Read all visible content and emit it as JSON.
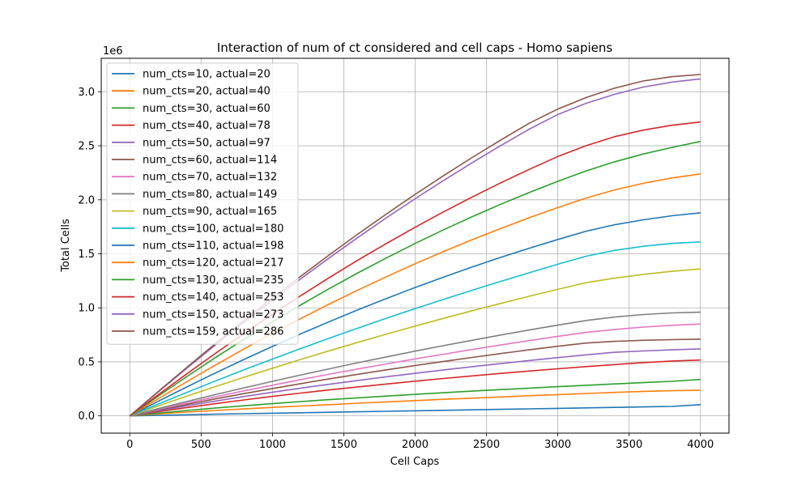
{
  "chart_data": {
    "type": "line",
    "title": "Interaction of num of ct considered and cell caps - Homo sapiens",
    "xlabel": "Cell Caps",
    "ylabel": "Total Cells",
    "y_offset_text": "1e6",
    "xlim": [
      -200,
      4200
    ],
    "ylim": [
      -160000,
      3310000
    ],
    "grid": true,
    "legend_placement": "upper-left",
    "x_ticks": [
      0,
      500,
      1000,
      1500,
      2000,
      2500,
      3000,
      3500,
      4000
    ],
    "x_tick_labels": [
      "0",
      "500",
      "1000",
      "1500",
      "2000",
      "2500",
      "3000",
      "3500",
      "4000"
    ],
    "y_ticks": [
      0,
      500000,
      1000000,
      1500000,
      2000000,
      2500000,
      3000000
    ],
    "y_tick_labels": [
      "0.0",
      "0.5",
      "1.0",
      "1.5",
      "2.0",
      "2.5",
      "3.0"
    ],
    "x": [
      0,
      200,
      400,
      600,
      800,
      1000,
      1200,
      1400,
      1600,
      1800,
      2000,
      2200,
      2400,
      2600,
      2800,
      3000,
      3200,
      3400,
      3600,
      3800,
      4000
    ],
    "series": [
      {
        "name": "num_cts=10, actual=20",
        "color": "#1f77b4",
        "values": [
          0,
          5000,
          10000,
          15000,
          19500,
          24000,
          28500,
          33000,
          37500,
          42000,
          46500,
          51000,
          55500,
          60000,
          64500,
          69000,
          73500,
          78000,
          82500,
          87000,
          104000
        ]
      },
      {
        "name": "num_cts=20, actual=40",
        "color": "#ff7f0e",
        "values": [
          0,
          18000,
          35000,
          50000,
          64000,
          78000,
          91000,
          104000,
          117000,
          129000,
          141000,
          153000,
          164000,
          175000,
          186000,
          197000,
          207000,
          217000,
          227000,
          233000,
          238000
        ]
      },
      {
        "name": "num_cts=30, actual=60",
        "color": "#2ca02c",
        "values": [
          0,
          26000,
          50000,
          72000,
          93000,
          113000,
          132000,
          150000,
          167000,
          183000,
          199000,
          214000,
          229000,
          243000,
          257000,
          270000,
          283000,
          296000,
          308000,
          320000,
          337000
        ]
      },
      {
        "name": "num_cts=40, actual=78",
        "color": "#d62728",
        "values": [
          0,
          39000,
          77000,
          113000,
          147000,
          180000,
          211000,
          240000,
          268000,
          295000,
          321000,
          346000,
          370000,
          393000,
          415000,
          436000,
          456000,
          475000,
          493000,
          508000,
          517000
        ]
      },
      {
        "name": "num_cts=50, actual=97",
        "color": "#9467bd",
        "values": [
          0,
          47000,
          93000,
          137000,
          179000,
          219000,
          257000,
          293000,
          328000,
          362000,
          394000,
          425000,
          455000,
          484000,
          512000,
          539000,
          565000,
          589000,
          601000,
          611000,
          620000
        ]
      },
      {
        "name": "num_cts=60, actual=114",
        "color": "#8c564b",
        "values": [
          0,
          53000,
          106000,
          157000,
          206000,
          253000,
          299000,
          343000,
          385000,
          426000,
          466000,
          504000,
          541000,
          577000,
          611000,
          644000,
          674000,
          690000,
          700000,
          706000,
          710000
        ]
      },
      {
        "name": "num_cts=70, actual=132",
        "color": "#e377c2",
        "values": [
          0,
          60000,
          119000,
          176000,
          231000,
          284000,
          336000,
          386000,
          434000,
          481000,
          527000,
          571000,
          614000,
          656000,
          697000,
          736000,
          772000,
          800000,
          822000,
          838000,
          850000
        ]
      },
      {
        "name": "num_cts=80, actual=149",
        "color": "#7f7f7f",
        "values": [
          0,
          67000,
          133000,
          197000,
          259000,
          320000,
          379000,
          436000,
          492000,
          546000,
          599000,
          650000,
          700000,
          748000,
          795000,
          840000,
          883000,
          915000,
          938000,
          953000,
          960000
        ]
      },
      {
        "name": "num_cts=90, actual=165",
        "color": "#bcbd22",
        "values": [
          0,
          92000,
          183000,
          271000,
          357000,
          441000,
          523000,
          603000,
          681000,
          757000,
          831000,
          903000,
          973000,
          1041000,
          1107000,
          1171000,
          1233000,
          1276000,
          1310000,
          1338000,
          1360000
        ]
      },
      {
        "name": "num_cts=100, actual=180",
        "color": "#17becf",
        "values": [
          0,
          110000,
          218000,
          323000,
          426000,
          526000,
          624000,
          720000,
          813000,
          904000,
          993000,
          1079000,
          1163000,
          1245000,
          1325000,
          1403000,
          1478000,
          1532000,
          1570000,
          1596000,
          1610000
        ]
      },
      {
        "name": "num_cts=110, actual=198",
        "color": "#1f77b4",
        "values": [
          0,
          135000,
          268000,
          397000,
          522000,
          643000,
          760000,
          873000,
          982000,
          1087000,
          1188000,
          1285000,
          1378000,
          1467000,
          1552000,
          1633000,
          1710000,
          1770000,
          1815000,
          1852000,
          1880000
        ]
      },
      {
        "name": "num_cts=120, actual=217",
        "color": "#ff7f0e",
        "values": [
          0,
          160000,
          317000,
          470000,
          619000,
          763000,
          902000,
          1036000,
          1165000,
          1289000,
          1408000,
          1522000,
          1631000,
          1735000,
          1834000,
          1928000,
          2017000,
          2092000,
          2153000,
          2202000,
          2240000
        ]
      },
      {
        "name": "num_cts=130, actual=235",
        "color": "#2ca02c",
        "values": [
          0,
          184000,
          364000,
          539000,
          708000,
          871000,
          1028000,
          1179000,
          1324000,
          1463000,
          1596000,
          1723000,
          1844000,
          1959000,
          2068000,
          2171000,
          2268000,
          2352000,
          2424000,
          2485000,
          2540000
        ]
      },
      {
        "name": "num_cts=140, actual=253",
        "color": "#d62728",
        "values": [
          0,
          196000,
          389000,
          578000,
          762000,
          941000,
          1114000,
          1281000,
          1442000,
          1597000,
          1746000,
          1889000,
          2026000,
          2157000,
          2282000,
          2401000,
          2501000,
          2585000,
          2645000,
          2690000,
          2720000
        ]
      },
      {
        "name": "num_cts=150, actual=273",
        "color": "#9467bd",
        "values": [
          0,
          222000,
          441000,
          656000,
          866000,
          1071000,
          1270000,
          1464000,
          1652000,
          1834000,
          2010000,
          2180000,
          2344000,
          2502000,
          2654000,
          2790000,
          2894000,
          2977000,
          3044000,
          3090000,
          3120000
        ]
      },
      {
        "name": "num_cts=159, actual=286",
        "color": "#8c564b",
        "values": [
          0,
          226000,
          449000,
          668000,
          882000,
          1091000,
          1294000,
          1492000,
          1684000,
          1870000,
          2050000,
          2224000,
          2392000,
          2554000,
          2709000,
          2840000,
          2947000,
          3034000,
          3100000,
          3140000,
          3160000
        ]
      }
    ]
  }
}
